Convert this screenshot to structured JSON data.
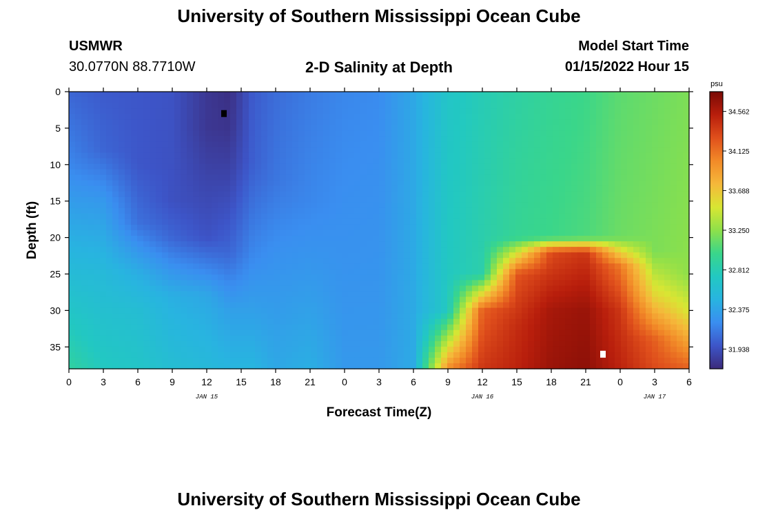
{
  "header": {
    "title": "University of Southern Mississippi Ocean Cube",
    "station": "USMWR",
    "coords": "30.0770N  88.7710W",
    "subtitle": "2-D Salinity at Depth",
    "model_start_label": "Model Start Time",
    "model_start_value": "01/15/2022 Hour 15"
  },
  "footer": {
    "title": "University of Southern Mississippi Ocean Cube"
  },
  "chart_data": {
    "type": "heatmap",
    "title": "2-D Salinity at Depth",
    "xlabel": "Forecast Time(Z)",
    "ylabel": "Depth (ft)",
    "x_tick_labels": [
      "0",
      "3",
      "6",
      "9",
      "12",
      "15",
      "18",
      "21",
      "0",
      "3",
      "6",
      "9",
      "12",
      "15",
      "18",
      "21",
      "0",
      "3",
      "6"
    ],
    "x_range_hours": [
      0,
      54
    ],
    "date_labels": [
      {
        "hour": 12,
        "text": "JAN 15"
      },
      {
        "hour": 36,
        "text": "JAN 16"
      },
      {
        "hour": 51,
        "text": "JAN 17"
      }
    ],
    "y_ticks": [
      0,
      5,
      10,
      15,
      20,
      25,
      30,
      35
    ],
    "y_range_ft": [
      0,
      38
    ],
    "y_inverted": true,
    "colorbar": {
      "unit": "psu",
      "min": 31.72,
      "max": 34.78,
      "tick_labels": [
        "31.938",
        "32.375",
        "32.812",
        "33.250",
        "33.688",
        "34.125",
        "34.562"
      ],
      "tick_values": [
        31.938,
        32.375,
        32.812,
        33.25,
        33.688,
        34.125,
        34.562
      ],
      "colors": [
        "#3b2a7a",
        "#3d55c8",
        "#3a8ef0",
        "#28b4e0",
        "#22c8c2",
        "#3ad68a",
        "#8ee04a",
        "#d8e633",
        "#f5b83a",
        "#f28a28",
        "#e0501c",
        "#b81e0c",
        "#7a0a05"
      ]
    },
    "markers": [
      {
        "name": "min-salinity-marker",
        "hour": 13.5,
        "depth": 3,
        "color": "#000000"
      },
      {
        "name": "max-salinity-marker",
        "hour": 46.5,
        "depth": 36,
        "color": "#ffffff"
      }
    ],
    "field_keyframes": [
      {
        "t": 0,
        "values": [
          [
            0,
            32.05
          ],
          [
            10,
            32.2
          ],
          [
            20,
            32.45
          ],
          [
            30,
            32.7
          ],
          [
            38,
            32.9
          ]
        ]
      },
      {
        "t": 3,
        "values": [
          [
            0,
            32.0
          ],
          [
            8,
            32.05
          ],
          [
            15,
            32.3
          ],
          [
            25,
            32.55
          ],
          [
            38,
            32.75
          ]
        ]
      },
      {
        "t": 6,
        "values": [
          [
            0,
            31.98
          ],
          [
            10,
            31.98
          ],
          [
            18,
            32.1
          ],
          [
            25,
            32.45
          ],
          [
            30,
            32.6
          ],
          [
            38,
            32.7
          ]
        ]
      },
      {
        "t": 9,
        "values": [
          [
            0,
            31.96
          ],
          [
            15,
            31.95
          ],
          [
            20,
            32.05
          ],
          [
            28,
            32.45
          ],
          [
            38,
            32.6
          ]
        ]
      },
      {
        "t": 12,
        "values": [
          [
            0,
            31.8
          ],
          [
            5,
            31.8
          ],
          [
            12,
            31.88
          ],
          [
            20,
            31.96
          ],
          [
            28,
            32.4
          ],
          [
            38,
            32.55
          ]
        ]
      },
      {
        "t": 14,
        "values": [
          [
            0,
            31.75
          ],
          [
            5,
            31.78
          ],
          [
            12,
            31.88
          ],
          [
            22,
            32.05
          ],
          [
            30,
            32.35
          ],
          [
            38,
            32.5
          ]
        ]
      },
      {
        "t": 16,
        "values": [
          [
            0,
            32.0
          ],
          [
            10,
            32.02
          ],
          [
            22,
            32.2
          ],
          [
            30,
            32.35
          ],
          [
            38,
            32.5
          ]
        ]
      },
      {
        "t": 18,
        "values": [
          [
            0,
            32.08
          ],
          [
            12,
            32.12
          ],
          [
            22,
            32.25
          ],
          [
            38,
            32.4
          ]
        ]
      },
      {
        "t": 21,
        "values": [
          [
            0,
            32.15
          ],
          [
            15,
            32.2
          ],
          [
            25,
            32.3
          ],
          [
            38,
            32.45
          ]
        ]
      },
      {
        "t": 24,
        "values": [
          [
            0,
            32.2
          ],
          [
            38,
            32.3
          ]
        ]
      },
      {
        "t": 27,
        "values": [
          [
            0,
            32.22
          ],
          [
            38,
            32.3
          ]
        ]
      },
      {
        "t": 30,
        "values": [
          [
            0,
            32.4
          ],
          [
            38,
            32.42
          ]
        ]
      },
      {
        "t": 33,
        "values": [
          [
            0,
            32.7
          ],
          [
            30,
            32.75
          ],
          [
            38,
            34.0
          ]
        ]
      },
      {
        "t": 36,
        "values": [
          [
            0,
            32.8
          ],
          [
            25,
            32.85
          ],
          [
            30,
            34.2
          ],
          [
            38,
            34.4
          ]
        ]
      },
      {
        "t": 39,
        "values": [
          [
            0,
            32.88
          ],
          [
            20,
            32.95
          ],
          [
            25,
            34.25
          ],
          [
            32,
            34.45
          ],
          [
            38,
            34.5
          ]
        ]
      },
      {
        "t": 42,
        "values": [
          [
            0,
            32.95
          ],
          [
            20,
            33.0
          ],
          [
            22,
            34.3
          ],
          [
            30,
            34.6
          ],
          [
            38,
            34.65
          ]
        ]
      },
      {
        "t": 45,
        "values": [
          [
            0,
            33.0
          ],
          [
            20,
            33.05
          ],
          [
            22,
            34.4
          ],
          [
            30,
            34.65
          ],
          [
            38,
            34.7
          ]
        ]
      },
      {
        "t": 48,
        "values": [
          [
            0,
            33.1
          ],
          [
            20,
            33.15
          ],
          [
            24,
            34.1
          ],
          [
            30,
            34.4
          ],
          [
            38,
            34.5
          ]
        ]
      },
      {
        "t": 51,
        "values": [
          [
            0,
            33.15
          ],
          [
            22,
            33.2
          ],
          [
            28,
            33.6
          ],
          [
            34,
            34.2
          ],
          [
            38,
            34.3
          ]
        ]
      },
      {
        "t": 54,
        "values": [
          [
            0,
            33.2
          ],
          [
            25,
            33.25
          ],
          [
            30,
            33.5
          ],
          [
            38,
            34.2
          ]
        ]
      }
    ]
  }
}
